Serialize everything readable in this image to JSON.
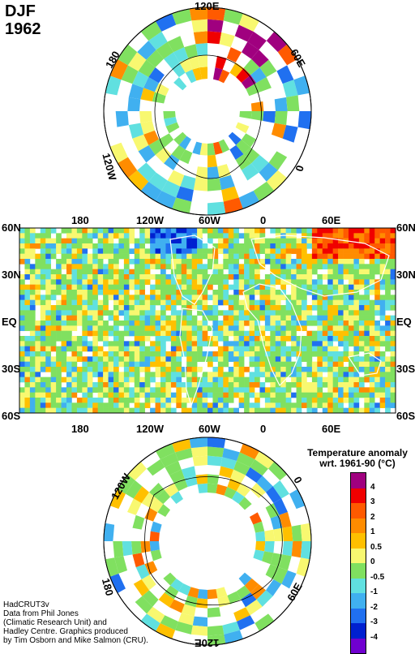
{
  "header": {
    "season": "DJF",
    "year": "1962"
  },
  "north_map": {
    "labels": {
      "top": "120E",
      "upper_left": "180",
      "upper_right": "60E",
      "right": "0",
      "left": "120W"
    }
  },
  "global_map": {
    "top_lon_labels": [
      "180",
      "120W",
      "60W",
      "0",
      "60E"
    ],
    "bottom_lon_labels": [
      "180",
      "120W",
      "60W",
      "0",
      "60E"
    ],
    "left_lat_labels": [
      "60N",
      "30N",
      "EQ",
      "30S",
      "60S"
    ],
    "right_lat_labels": [
      "60N",
      "30N",
      "EQ",
      "30S",
      "60S"
    ]
  },
  "south_map": {
    "labels": {
      "upper_left": "120W",
      "upper_right": "0",
      "lower_left": "180",
      "lower_right": "60E",
      "bottom": "120E",
      "top": "60W"
    }
  },
  "legend": {
    "title_line1": "Temperature anomaly",
    "title_line2": "wrt. 1961-90  (°C)",
    "ticks": [
      "4",
      "3",
      "2",
      "1",
      "0.5",
      "0",
      "-0.5",
      "-1",
      "-2",
      "-3",
      "-4"
    ],
    "colors": [
      "#a0007f",
      "#f00000",
      "#ff5a00",
      "#ff8c00",
      "#ffc000",
      "#f8f870",
      "#80e060",
      "#60e0e0",
      "#40b0f0",
      "#2070f0",
      "#0020d0",
      "#7000d0"
    ]
  },
  "credits": {
    "line1": "HadCRUT3v",
    "line2": "Data from Phil Jones",
    "line3": "(Climatic Research Unit) and",
    "line4": "Hadley Centre.  Graphics produced",
    "line5": "by Tim Osborn and Mike Salmon (CRU)."
  }
}
